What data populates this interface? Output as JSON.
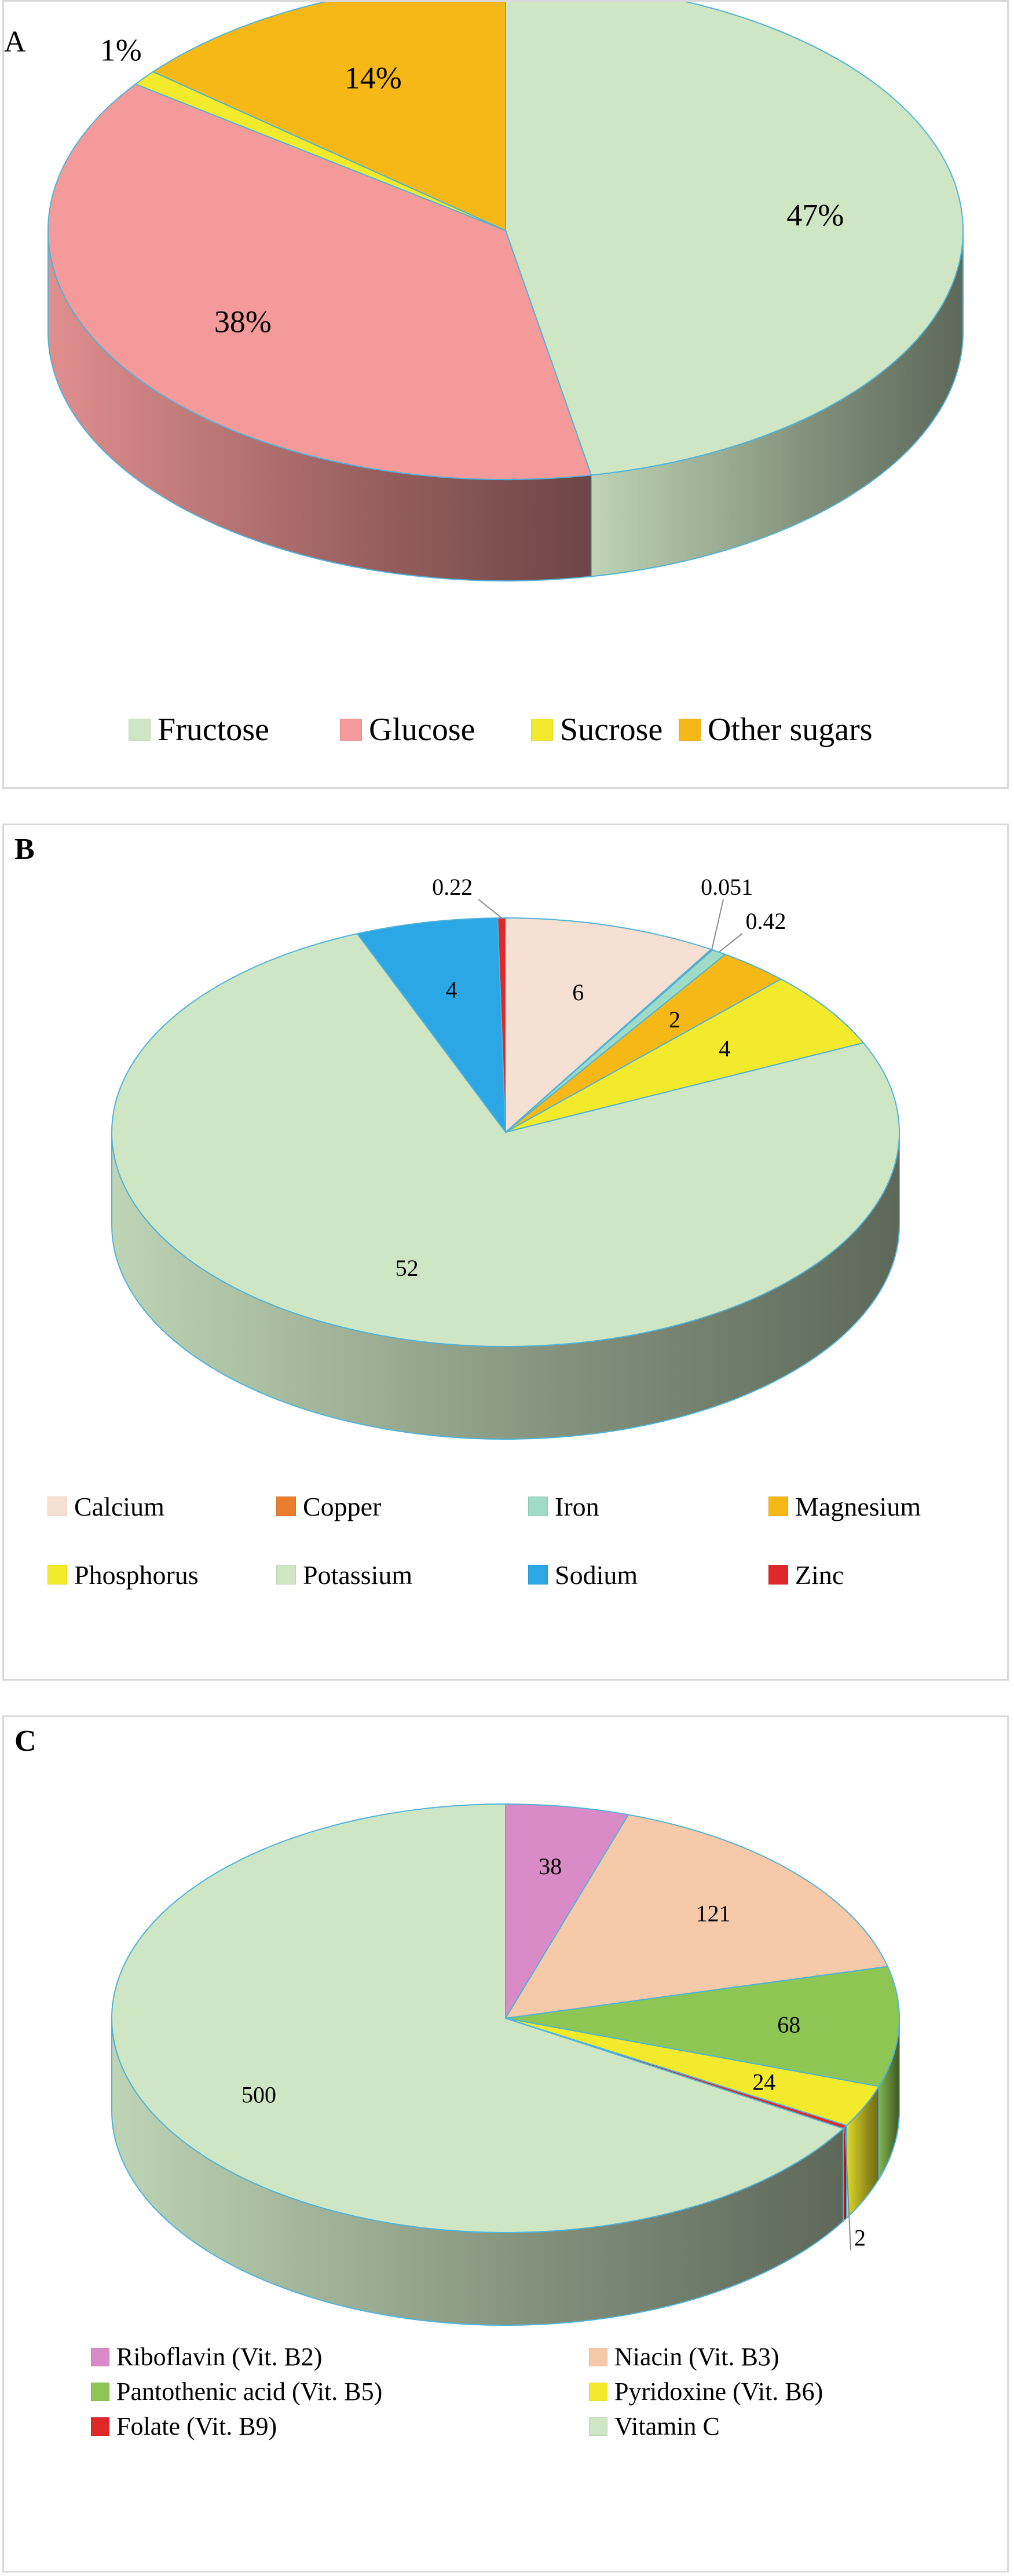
{
  "chart_data": [
    {
      "id": "A",
      "type": "pie",
      "title": "",
      "panel_label": "A",
      "label_format": "percent",
      "categories": [
        "Fructose",
        "Glucose",
        "Sucrose",
        "Other sugars"
      ],
      "values": [
        47,
        38,
        1,
        14
      ],
      "data_labels": [
        "47%",
        "38%",
        "1%",
        "14%"
      ],
      "colors": [
        "#cfe6c5",
        "#f49a9a",
        "#f2ea2b",
        "#f5b817"
      ],
      "legend_position": "bottom",
      "legend": [
        "Fructose",
        "Glucose",
        "Sucrose",
        "Other sugars"
      ]
    },
    {
      "id": "B",
      "type": "pie",
      "title": "",
      "panel_label": "B",
      "label_format": "value",
      "categories": [
        "Calcium",
        "Copper",
        "Iron",
        "Magnesium",
        "Phosphorus",
        "Potassium",
        "Sodium",
        "Zinc"
      ],
      "values": [
        6,
        0.051,
        0.42,
        2,
        4,
        52,
        4,
        0.22
      ],
      "data_labels": [
        "6",
        "0.051",
        "0.42",
        "2",
        "4",
        "52",
        "4",
        "0.22"
      ],
      "colors": [
        "#f6dfd3",
        "#e87d2e",
        "#9fdbc6",
        "#f5b817",
        "#f2ea2b",
        "#cfe6c5",
        "#2aa7e4",
        "#e02828"
      ],
      "legend_position": "bottom",
      "legend": [
        "Calcium",
        "Copper",
        "Iron",
        "Magnesium",
        "Phosphorus",
        "Potassium",
        "Sodium",
        "Zinc"
      ]
    },
    {
      "id": "C",
      "type": "pie",
      "title": "",
      "panel_label": "C",
      "label_format": "value",
      "categories": [
        "Riboflavin (Vit. B2)",
        "Niacin (Vit. B3)",
        "Pantothenic acid (Vit. B5)",
        "Pyridoxine (Vit. B6)",
        "Folate (Vit. B9)",
        "Vitamin C"
      ],
      "values": [
        38,
        121,
        68,
        24,
        2,
        500
      ],
      "data_labels": [
        "38",
        "121",
        "68",
        "24",
        "2",
        "500"
      ],
      "colors": [
        "#d88bc7",
        "#f6c9a8",
        "#8dc653",
        "#f2ea2b",
        "#e02828",
        "#cfe6c5"
      ],
      "legend_position": "bottom",
      "legend": [
        "Riboflavin (Vit. B2)",
        "Niacin (Vit. B3)",
        "Pantothenic acid (Vit. B5)",
        "Pyridoxine (Vit. B6)",
        "Folate (Vit. B9)",
        "Vitamin C"
      ]
    }
  ],
  "edge_color": "#4fb3d9"
}
